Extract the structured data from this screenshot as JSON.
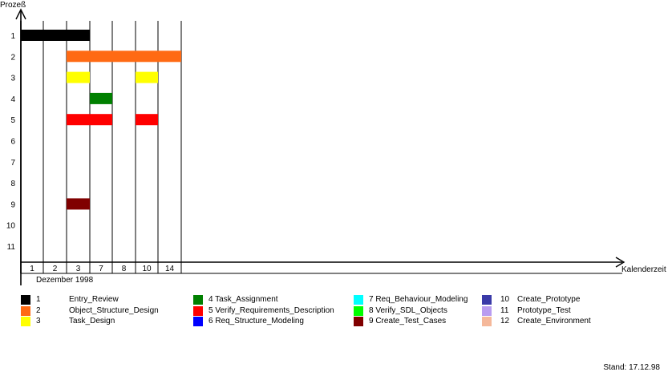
{
  "chart_data": {
    "type": "gantt",
    "ylabel": "Prozeß",
    "xlabel": "Kalenderzeit",
    "month_label": "Dezember 1998",
    "columns": [
      "1",
      "2",
      "3",
      "7",
      "8",
      "10",
      "14"
    ],
    "rows": [
      "1",
      "2",
      "3",
      "4",
      "5",
      "6",
      "7",
      "8",
      "9",
      "10",
      "11"
    ],
    "bars": [
      {
        "row": "1",
        "start_col": 0,
        "end_col": 3,
        "activity": 1
      },
      {
        "row": "2",
        "start_col": 2,
        "end_col": 7,
        "activity": 2
      },
      {
        "row": "3",
        "start_col": 2,
        "end_col": 3,
        "activity": 3
      },
      {
        "row": "3",
        "start_col": 5,
        "end_col": 6,
        "activity": 3
      },
      {
        "row": "4",
        "start_col": 3,
        "end_col": 4,
        "activity": 4
      },
      {
        "row": "5",
        "start_col": 2,
        "end_col": 4,
        "activity": 5
      },
      {
        "row": "5",
        "start_col": 5,
        "end_col": 6,
        "activity": 5
      },
      {
        "row": "9",
        "start_col": 2,
        "end_col": 3,
        "activity": 9
      }
    ]
  },
  "legend": [
    {
      "num": "1",
      "name": "Entry_Review",
      "color": "#000000"
    },
    {
      "num": "2",
      "name": "Object_Structure_Design",
      "color": "#ff6a13"
    },
    {
      "num": "3",
      "name": "Task_Design",
      "color": "#ffff00"
    },
    {
      "num": "4",
      "name": "Task_Assignment",
      "color": "#008000"
    },
    {
      "num": "5",
      "name": "Verify_Requirements_Description",
      "color": "#ff0000"
    },
    {
      "num": "6",
      "name": "Req_Structure_Modeling",
      "color": "#0000ff"
    },
    {
      "num": "7",
      "name": "Req_Behaviour_Modeling",
      "color": "#00ffff"
    },
    {
      "num": "8",
      "name": "Verify_SDL_Objects",
      "color": "#00ff00"
    },
    {
      "num": "9",
      "name": "Create_Test_Cases",
      "color": "#800000"
    },
    {
      "num": "10",
      "name": "Create_Prototype",
      "color": "#3a3aa8"
    },
    {
      "num": "11",
      "name": "Prototype_Test",
      "color": "#b99cf0"
    },
    {
      "num": "12",
      "name": "Create_Environment",
      "color": "#f5b89a"
    }
  ],
  "stand": "Stand: 17.12.98"
}
